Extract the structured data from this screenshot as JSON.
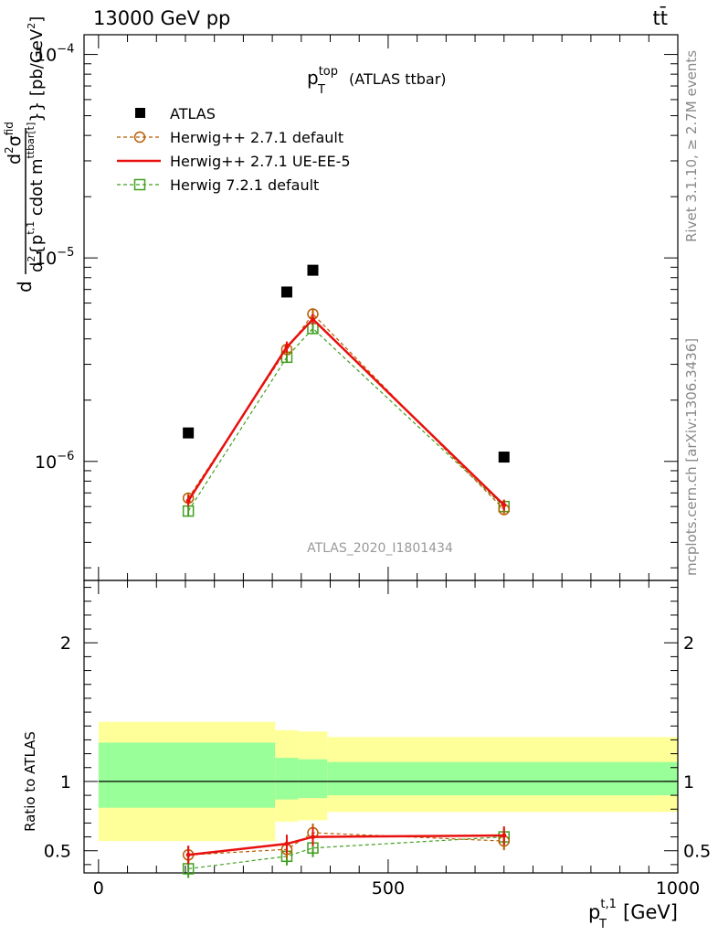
{
  "header": {
    "energy_label": "13000 GeV pp",
    "process_label": "tt̄"
  },
  "side_text": {
    "rivet": "Rivet 3.1.10, ≥ 2.7M events",
    "mcplots": "mcplots.cern.ch [arXiv:1306.3436]"
  },
  "watermark": "ATLAS_2020_I1801434",
  "chart_data": [
    {
      "type": "scatter",
      "panel": "main",
      "title": {
        "main": "p",
        "sup": "top",
        "sub": "T",
        "rest": "(ATLAS ttbar)"
      },
      "ylabel": "d²σ^fid / d²{p_T^{t,1} cdot m^{ttbar[t]}} [pb/GeV²]",
      "ylabel_parts": {
        "num_pre": "d",
        "num_sup": "2",
        "num_main": "σ",
        "num_main_sup": "fid",
        "den_pre": "d",
        "den_sup": "2",
        "den_main": "{p",
        "den_sup2": "t,1",
        "den_sub2": "T",
        "den_rest": " cdot m",
        "den_sup3": "ttbar[t]",
        "den_end": "}} [pb/GeV",
        "unit_sup": "2",
        "unit_end": "]"
      },
      "yscale": "log",
      "ylim": [
        2.6e-07,
        0.000125
      ],
      "xlim": [
        -25,
        1000
      ],
      "ytick_labels": [
        {
          "mant": "10",
          "exp": "−6",
          "value": 1e-06
        },
        {
          "mant": "10",
          "exp": "−5",
          "value": 1e-05
        },
        {
          "mant": "10",
          "exp": "−4",
          "value": 0.0001
        }
      ],
      "legend_position": "top-left",
      "series": [
        {
          "name": "ATLAS",
          "color": "#000000",
          "marker": "filled-square",
          "line": "none",
          "x": [
            155,
            325,
            370,
            700
          ],
          "y": [
            1.38e-06,
            6.8e-06,
            8.7e-06,
            1.05e-06
          ]
        },
        {
          "name": "Herwig++ 2.7.1 default",
          "color": "#b85c00",
          "marker": "open-circle",
          "line": "dashed",
          "x": [
            155,
            325,
            370,
            700
          ],
          "y": [
            6.6e-07,
            3.55e-06,
            5.3e-06,
            5.8e-07
          ]
        },
        {
          "name": "Herwig++ 2.7.1 UE-EE-5",
          "color": "#e8100e",
          "marker": "none",
          "line": "solid",
          "x": [
            155,
            325,
            370,
            700
          ],
          "y": [
            6.4e-07,
            3.65e-06,
            5e-06,
            6.1e-07
          ]
        },
        {
          "name": "Herwig 7.2.1 default",
          "color": "#3f9f1e",
          "marker": "open-square",
          "line": "dashed",
          "x": [
            155,
            325,
            370,
            700
          ],
          "y": [
            5.7e-07,
            3.25e-06,
            4.5e-06,
            6e-07
          ]
        }
      ]
    },
    {
      "type": "scatter",
      "panel": "ratio",
      "ylabel": "Ratio to ATLAS",
      "xlabel": {
        "main": "p",
        "sup": "t,1",
        "sub": "T",
        "rest": "[GeV]"
      },
      "ylim": [
        0.34,
        2.45
      ],
      "xlim": [
        -25,
        1000
      ],
      "xtick_labels": [
        "0",
        "500",
        "1000"
      ],
      "xtick_values": [
        0,
        500,
        1000
      ],
      "ytick_labels": [
        "0.5",
        "1",
        "2"
      ],
      "ytick_values": [
        0.5,
        1,
        2
      ],
      "bands": [
        {
          "x0": 0,
          "x1": 305,
          "yellow": [
            0.57,
            1.43
          ],
          "green": [
            0.81,
            1.28
          ]
        },
        {
          "x0": 305,
          "x1": 345,
          "yellow": [
            0.71,
            1.37
          ],
          "green": [
            0.87,
            1.17
          ]
        },
        {
          "x0": 345,
          "x1": 395,
          "yellow": [
            0.72,
            1.36
          ],
          "green": [
            0.88,
            1.16
          ]
        },
        {
          "x0": 395,
          "x1": 1000,
          "yellow": [
            0.78,
            1.32
          ],
          "green": [
            0.9,
            1.14
          ]
        }
      ],
      "band_colors": {
        "yellow": "#ffff99",
        "green": "#99ff99"
      },
      "series": [
        {
          "name": "Herwig++ 2.7.1 default",
          "color": "#b85c00",
          "marker": "open-circle",
          "line": "dashed",
          "x": [
            155,
            325,
            370,
            700
          ],
          "y": [
            0.47,
            0.51,
            0.63,
            0.57
          ]
        },
        {
          "name": "Herwig++ 2.7.1 UE-EE-5",
          "color": "#e8100e",
          "marker": "none",
          "line": "solid",
          "x": [
            155,
            325,
            370,
            700
          ],
          "y": [
            0.47,
            0.55,
            0.6,
            0.61
          ]
        },
        {
          "name": "Herwig 7.2.1 default",
          "color": "#3f9f1e",
          "marker": "open-square",
          "line": "dashed",
          "x": [
            155,
            325,
            370,
            700
          ],
          "y": [
            0.37,
            0.46,
            0.52,
            0.6
          ]
        }
      ]
    }
  ]
}
